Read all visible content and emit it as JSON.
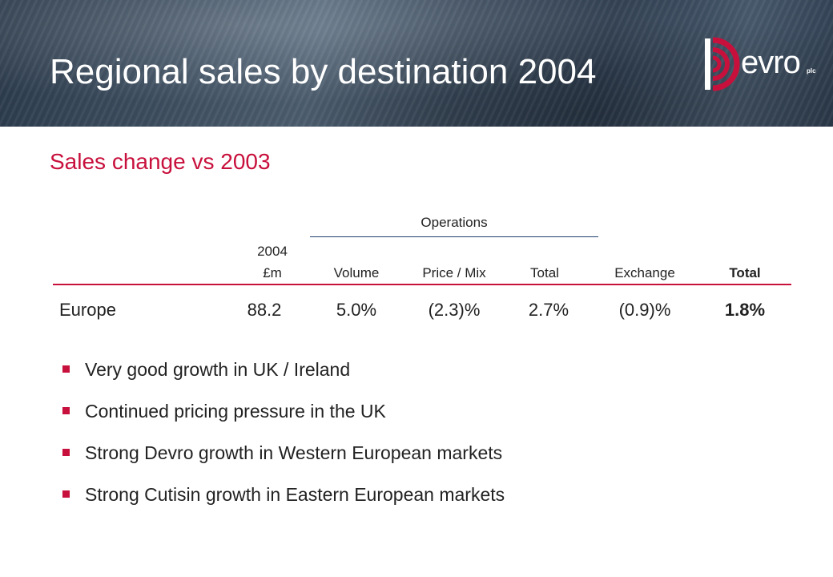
{
  "slide": {
    "title": "Regional sales by destination 2004",
    "subtitle": "Sales change vs 2003"
  },
  "logo": {
    "text": "evro",
    "suffix": "plc",
    "brand_color": "#c8103c"
  },
  "table": {
    "group_header": "Operations",
    "columns": [
      {
        "line1": "2004",
        "line2": "£m"
      },
      {
        "line1": "",
        "line2": "Volume"
      },
      {
        "line1": "",
        "line2": "Price / Mix"
      },
      {
        "line1": "",
        "line2": "Total"
      },
      {
        "line1": "",
        "line2": "Exchange"
      },
      {
        "line1": "",
        "line2": "Total"
      }
    ],
    "rows": [
      {
        "region": "Europe",
        "sales_m": "88.2",
        "volume": "5.0%",
        "price_mix": "(2.3)%",
        "ops_total": "2.7%",
        "exchange": "(0.9)%",
        "total": "1.8%"
      }
    ]
  },
  "bullets": [
    "Very good growth in UK / Ireland",
    "Continued pricing pressure in the UK",
    "Strong Devro growth in Western European markets",
    "Strong Cutisin growth in Eastern European markets"
  ],
  "colors": {
    "accent": "#c8103c",
    "header_bg": "#3a4a5c",
    "rule": "#1f3f6e"
  }
}
